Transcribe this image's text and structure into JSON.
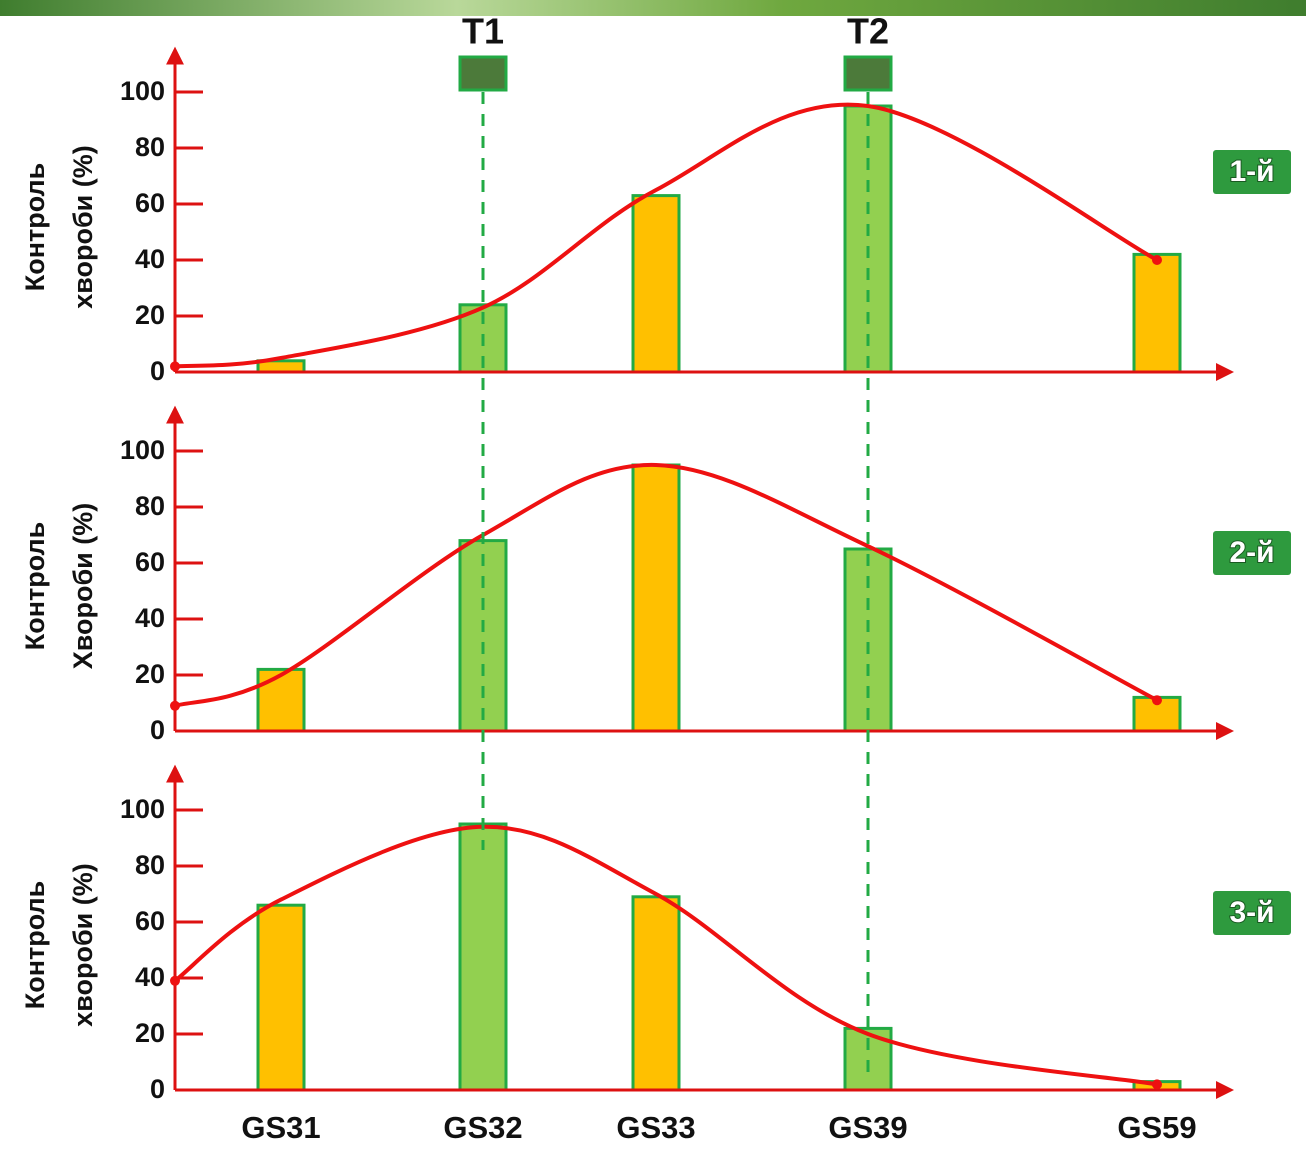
{
  "chart_data": [
    {
      "type": "bar",
      "badge": "1-й",
      "ylabel_lines": [
        "Контроль",
        "хвороби (%)"
      ],
      "values": [
        4,
        24,
        63,
        95,
        42
      ],
      "colors": [
        "#ffc000",
        "#92d050",
        "#ffc000",
        "#92d050",
        "#ffc000"
      ],
      "curve": {
        "color": "#ee1111",
        "start": 2,
        "values": [
          5,
          23,
          65,
          95,
          40
        ]
      },
      "ylim": [
        0,
        113
      ],
      "yticks": [
        0,
        20,
        40,
        60,
        80,
        100
      ],
      "treatments": [
        {
          "label": "T1"
        },
        {
          "label": "T2"
        }
      ]
    },
    {
      "type": "bar",
      "badge": "2-й",
      "ylabel_lines": [
        "Контроль",
        "Хвороби (%)"
      ],
      "values": [
        22,
        68,
        95,
        65,
        12
      ],
      "colors": [
        "#ffc000",
        "#92d050",
        "#ffc000",
        "#92d050",
        "#ffc000"
      ],
      "curve": {
        "color": "#ee1111",
        "start": 9,
        "values": [
          20,
          70,
          95,
          66,
          11
        ]
      },
      "ylim": [
        0,
        113
      ],
      "yticks": [
        0,
        20,
        40,
        60,
        80,
        100
      ]
    },
    {
      "type": "bar",
      "badge": "3-й",
      "ylabel_lines": [
        "Контроль",
        "хвороби (%)"
      ],
      "categories": [
        "GS31",
        "GS32",
        "GS33",
        "GS39",
        "GS59"
      ],
      "values": [
        66,
        95,
        69,
        22,
        3
      ],
      "colors": [
        "#ffc000",
        "#92d050",
        "#ffc000",
        "#92d050",
        "#ffc000"
      ],
      "curve": {
        "color": "#ee1111",
        "start": 39,
        "values": [
          68,
          94,
          70,
          20,
          2
        ]
      },
      "ylim": [
        0,
        113
      ],
      "yticks": [
        0,
        20,
        40,
        60,
        80,
        100
      ]
    }
  ]
}
